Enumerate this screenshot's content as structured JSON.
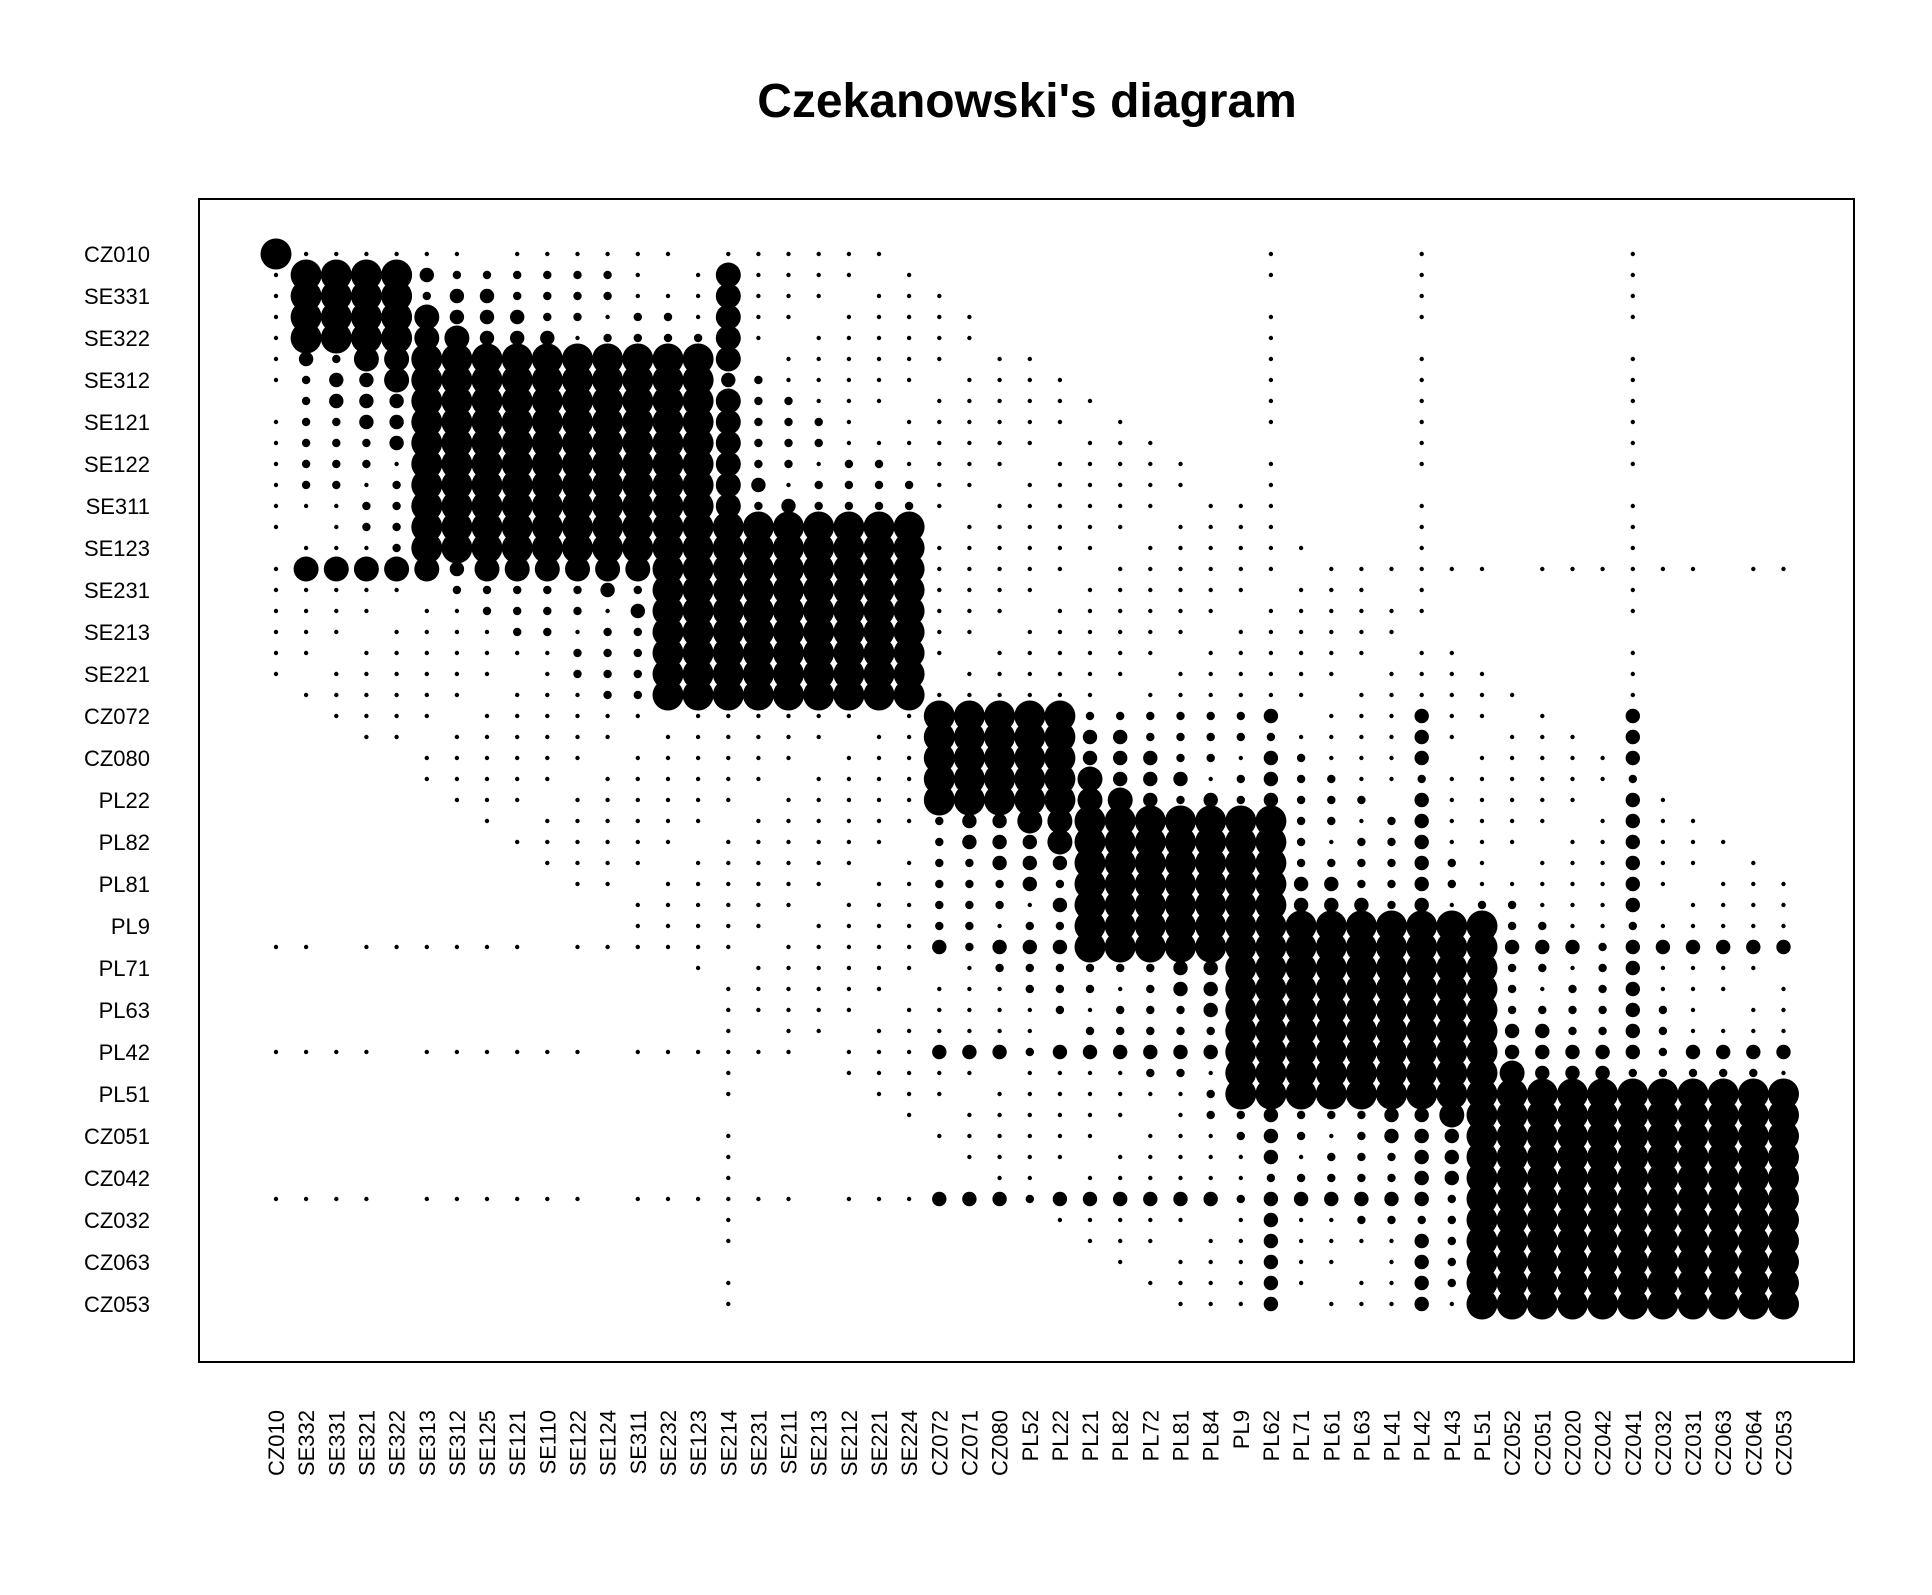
{
  "chart_data": {
    "type": "heatmap",
    "title": "Czekanowski's diagram",
    "mark": "circle",
    "color": "#000000",
    "x_tick_labels": [
      "CZ010",
      "SE332",
      "SE331",
      "SE321",
      "SE322",
      "SE313",
      "SE312",
      "SE125",
      "SE121",
      "SE110",
      "SE122",
      "SE124",
      "SE311",
      "SE232",
      "SE123",
      "SE214",
      "SE231",
      "SE211",
      "SE213",
      "SE212",
      "SE221",
      "SE224",
      "CZ072",
      "CZ071",
      "CZ080",
      "PL52",
      "PL22",
      "PL21",
      "PL82",
      "PL72",
      "PL81",
      "PL84",
      "PL9",
      "PL62",
      "PL71",
      "PL61",
      "PL63",
      "PL41",
      "PL42",
      "PL43",
      "PL51",
      "CZ052",
      "CZ051",
      "CZ020",
      "CZ042",
      "CZ041",
      "CZ032",
      "CZ031",
      "CZ063",
      "CZ064",
      "CZ053"
    ],
    "y_tick_labels": [
      "CZ010",
      "SE331",
      "SE322",
      "SE312",
      "SE121",
      "SE122",
      "SE311",
      "SE123",
      "SE231",
      "SE213",
      "SE221",
      "CZ072",
      "CZ080",
      "PL22",
      "PL82",
      "PL81",
      "PL9",
      "PL71",
      "PL63",
      "PL42",
      "PL51",
      "CZ051",
      "CZ042",
      "CZ032",
      "CZ063",
      "CZ053"
    ],
    "order": [
      "CZ010",
      "SE332",
      "SE331",
      "SE321",
      "SE322",
      "SE313",
      "SE312",
      "SE125",
      "SE121",
      "SE110",
      "SE122",
      "SE124",
      "SE311",
      "SE232",
      "SE123",
      "SE214",
      "SE231",
      "SE211",
      "SE213",
      "SE212",
      "SE221",
      "SE224",
      "CZ072",
      "CZ071",
      "CZ080",
      "PL52",
      "PL22",
      "PL21",
      "PL82",
      "PL72",
      "PL81",
      "PL84",
      "PL9",
      "PL62",
      "PL71",
      "PL61",
      "PL63",
      "PL41",
      "PL42",
      "PL43",
      "PL51",
      "CZ052",
      "CZ051",
      "CZ020",
      "CZ042",
      "CZ041",
      "CZ032",
      "CZ031",
      "CZ063",
      "CZ064",
      "CZ053"
    ],
    "value_scale": "similarity 0 (no dot) to 5 (largest dot)",
    "clusters": [
      {
        "start": 0,
        "end": 0,
        "level": 5
      },
      {
        "start": 1,
        "end": 4,
        "level": 5
      },
      {
        "start": 5,
        "end": 14,
        "level": 5
      },
      {
        "start": 13,
        "end": 21,
        "level": 5
      },
      {
        "start": 22,
        "end": 26,
        "level": 5
      },
      {
        "start": 27,
        "end": 33,
        "level": 5
      },
      {
        "start": 32,
        "end": 40,
        "level": 5
      },
      {
        "start": 40,
        "end": 50,
        "level": 5
      }
    ],
    "special_rows": [
      {
        "index": 15,
        "level": 4
      },
      {
        "index": 33,
        "level": 3
      },
      {
        "index": 38,
        "level": 3
      },
      {
        "index": 45,
        "level": 3
      }
    ],
    "grid": false,
    "legend": "none"
  }
}
